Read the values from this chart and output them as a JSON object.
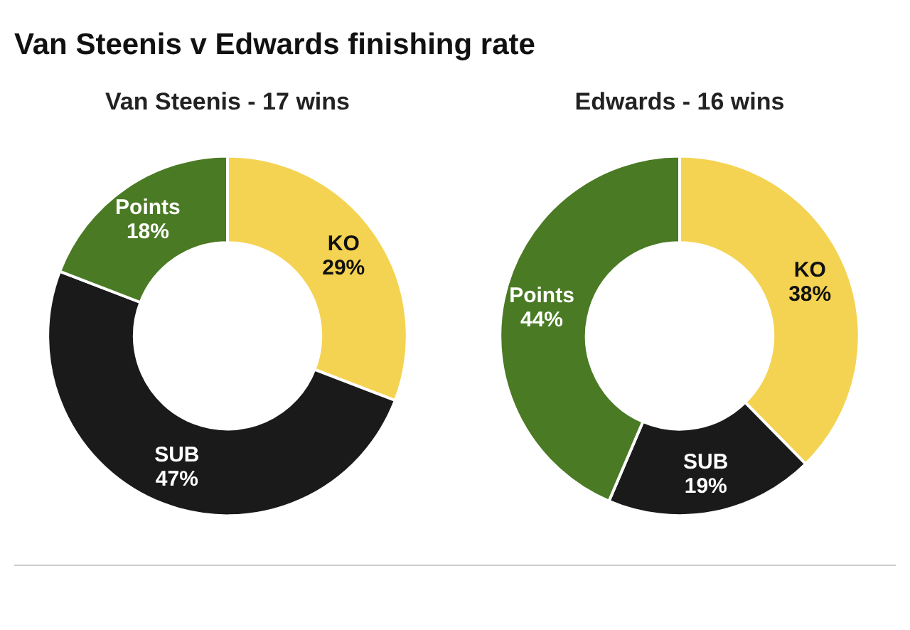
{
  "chart_data": [
    {
      "type": "donut",
      "title": "Van Steenis v Edwards finishing rate",
      "subtitle": "Van Steenis - 17 wins",
      "categories": [
        "KO",
        "SUB",
        "Points"
      ],
      "values": [
        29,
        47,
        18
      ],
      "value_labels": [
        "29%",
        "47%",
        "18%"
      ],
      "colors": [
        "#f5d352",
        "#1a1a1a",
        "#4a7a24"
      ],
      "legend": false
    },
    {
      "type": "donut",
      "title": "Edwards - 16 wins",
      "categories": [
        "KO",
        "SUB",
        "Points"
      ],
      "values": [
        38,
        19,
        44
      ],
      "value_labels": [
        "38%",
        "19%",
        "44%"
      ],
      "colors": [
        "#f5d352",
        "#1a1a1a",
        "#4a7a24"
      ],
      "legend": false
    }
  ]
}
